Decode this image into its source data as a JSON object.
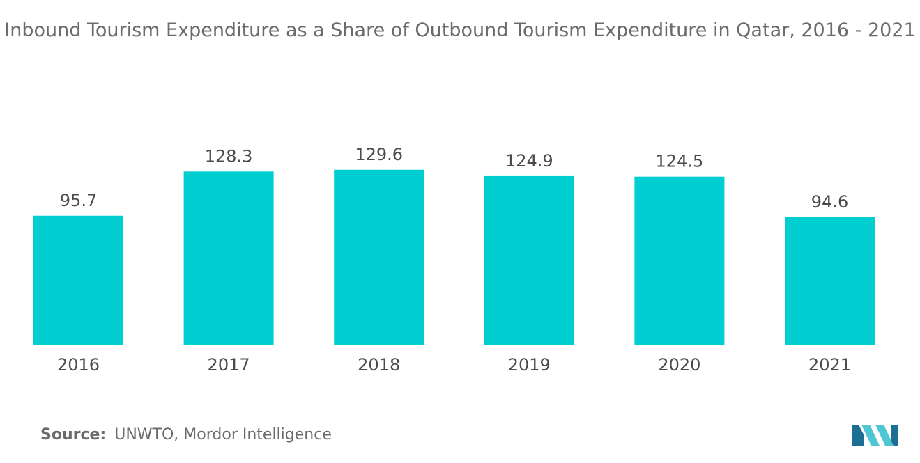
{
  "chart_data": {
    "type": "bar",
    "title": "Inbound Tourism Expenditure as a Share of Outbound Tourism Expenditure in Qatar, 2016 - 2021",
    "categories": [
      "2016",
      "2017",
      "2018",
      "2019",
      "2020",
      "2021"
    ],
    "values": [
      95.7,
      128.3,
      129.6,
      124.9,
      124.5,
      94.6
    ],
    "data_labels": [
      "95.7",
      "128.3",
      "129.6",
      "124.9",
      "124.5",
      "94.6"
    ],
    "xlabel": "",
    "ylabel": "",
    "ylim": [
      0,
      130
    ],
    "grid": false,
    "legend": "none",
    "bar_color": "#00ced1"
  },
  "source": {
    "label": "Source:",
    "text": "UNWTO, Mordor Intelligence"
  },
  "colors": {
    "bar": "#00ced1",
    "text": "#6b6b6b",
    "logo_dark": "#1b6f95",
    "logo_light": "#4fc6d4"
  }
}
